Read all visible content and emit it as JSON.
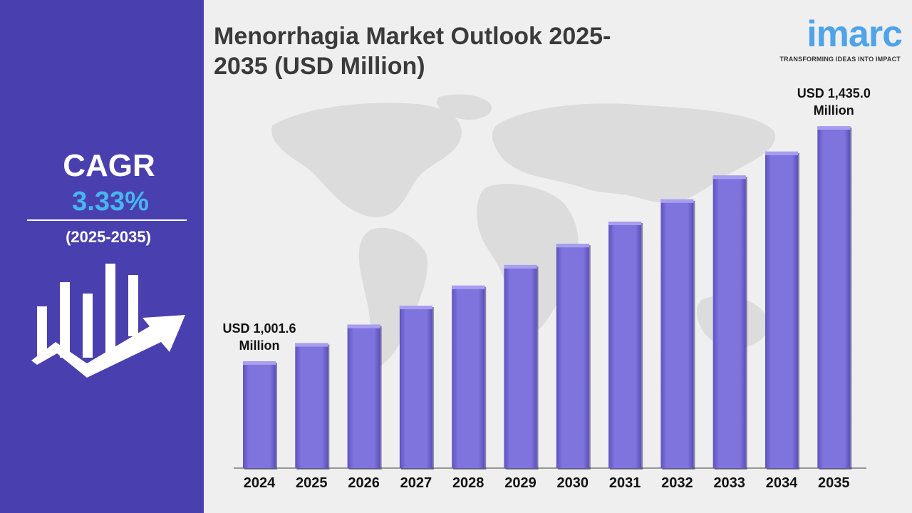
{
  "sidebar": {
    "cagr_label": "CAGR",
    "cagr_value": "3.33%",
    "period": "(2025-2035)"
  },
  "header": {
    "title_line1": "Menorrhagia Market Outlook 2025-",
    "title_line2": "2035 (USD Million)"
  },
  "logo": {
    "word": "imarc",
    "tagline": "TRANSFORMING IDEAS INTO IMPACT"
  },
  "colors": {
    "sidebar_bg": "#4a3fae",
    "cagr_accent": "#47b6f0",
    "bar_fill": "#7b6fd8",
    "bar_top": "#a79ef0",
    "logo_blue": "#4fa3e8"
  },
  "chart_data": {
    "type": "bar",
    "title": "Menorrhagia Market Outlook 2025-2035 (USD Million)",
    "categories": [
      "2024",
      "2025",
      "2026",
      "2027",
      "2028",
      "2029",
      "2030",
      "2031",
      "2032",
      "2033",
      "2034",
      "2035"
    ],
    "values": [
      1001.6,
      1035,
      1069,
      1104,
      1141,
      1179,
      1218,
      1259,
      1300,
      1344,
      1388,
      1435.0
    ],
    "data_labels": [
      {
        "index": 0,
        "line1": "USD 1,001.6",
        "line2": "Million"
      },
      {
        "index": 11,
        "line1": "USD 1,435.0",
        "line2": "Million"
      }
    ],
    "xlabel": "",
    "ylabel": "",
    "grid": false,
    "legend": "none"
  }
}
